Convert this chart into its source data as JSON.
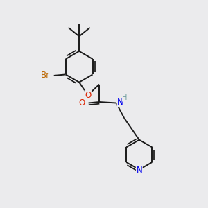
{
  "bg_color": "#ebebed",
  "bond_color": "#1a1a1a",
  "bond_width": 1.4,
  "atom_colors": {
    "C": "#1a1a1a",
    "H": "#6a9a9a",
    "O": "#dd2200",
    "N": "#0000ee",
    "Br": "#bb6600"
  },
  "font_size": 8.5,
  "ring_r": 0.75,
  "pyridine_r": 0.72
}
